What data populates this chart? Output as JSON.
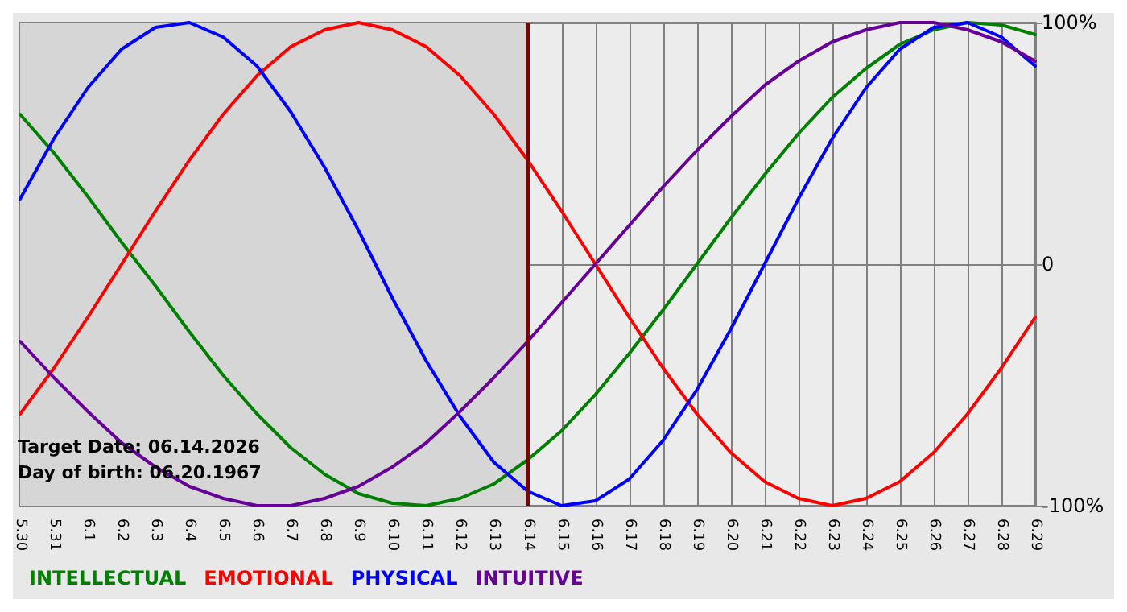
{
  "chart_data": {
    "type": "line",
    "categories": [
      "5.30",
      "5.31",
      "6.1",
      "6.2",
      "6.3",
      "6.4",
      "6.5",
      "6.6",
      "6.7",
      "6.8",
      "6.9",
      "6.10",
      "6.11",
      "6.12",
      "6.13",
      "6.14",
      "6.15",
      "6.16",
      "6.17",
      "6.18",
      "6.19",
      "6.20",
      "6.21",
      "6.22",
      "6.23",
      "6.24",
      "6.25",
      "6.26",
      "6.27",
      "6.28",
      "6.29"
    ],
    "series": [
      {
        "name": "INTELLECTUAL",
        "color": "#008000",
        "values": [
          62,
          46,
          28,
          9,
          -9,
          -28,
          -46,
          -62,
          -76,
          -87,
          -95,
          -99,
          -100,
          -97,
          -91,
          -81,
          -69,
          -54,
          -37,
          -19,
          0,
          19,
          37,
          54,
          69,
          81,
          91,
          97,
          100,
          99,
          95
        ]
      },
      {
        "name": "EMOTIONAL",
        "color": "#ff0000",
        "values": [
          -62,
          -43,
          -22,
          0,
          22,
          43,
          62,
          78,
          90,
          97,
          100,
          97,
          90,
          78,
          62,
          43,
          22,
          0,
          -22,
          -43,
          -62,
          -78,
          -90,
          -97,
          -100,
          -97,
          -90,
          -78,
          -62,
          -43,
          -22
        ]
      },
      {
        "name": "PHYSICAL",
        "color": "#0000ff",
        "values": [
          27,
          52,
          73,
          89,
          98,
          100,
          94,
          82,
          63,
          40,
          14,
          -14,
          -40,
          -63,
          -82,
          -94,
          -100,
          -98,
          -89,
          -73,
          -52,
          -27,
          0,
          27,
          52,
          73,
          89,
          98,
          100,
          94,
          82
        ]
      },
      {
        "name": "INTUITIVE",
        "color": "#660099",
        "values": [
          -32,
          -47,
          -61,
          -74,
          -84,
          -92,
          -97,
          -100,
          -100,
          -97,
          -92,
          -84,
          -74,
          -61,
          -47,
          -32,
          -16,
          0,
          16,
          32,
          47,
          61,
          74,
          84,
          92,
          97,
          100,
          100,
          97,
          92,
          84
        ]
      }
    ],
    "ylim": [
      -100,
      100
    ],
    "yticks": [
      {
        "value": -100,
        "label": "-100%"
      },
      {
        "value": 0,
        "label": "0"
      },
      {
        "value": 100,
        "label": "100%"
      }
    ],
    "ref_lines": [
      {
        "axis": "x",
        "value": "6.14",
        "color": "#800000"
      }
    ],
    "bands": [
      {
        "axis": "x",
        "from": "5.30",
        "to": "6.14",
        "color": "#d6d6d6"
      }
    ],
    "annotations": [
      "Target Date: 06.14.2026",
      "Day of birth: 06.20.1967"
    ],
    "grid": true,
    "legend": "bottom left",
    "marker": "none",
    "line_style": "solid"
  }
}
